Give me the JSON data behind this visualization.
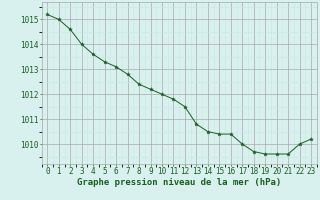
{
  "x": [
    0,
    1,
    2,
    3,
    4,
    5,
    6,
    7,
    8,
    9,
    10,
    11,
    12,
    13,
    14,
    15,
    16,
    17,
    18,
    19,
    20,
    21,
    22,
    23
  ],
  "y": [
    1015.2,
    1015.0,
    1014.6,
    1014.0,
    1013.6,
    1013.3,
    1013.1,
    1012.8,
    1012.4,
    1012.2,
    1012.0,
    1011.8,
    1011.5,
    1010.8,
    1010.5,
    1010.4,
    1010.4,
    1010.0,
    1009.7,
    1009.6,
    1009.6,
    1009.6,
    1010.0,
    1010.2
  ],
  "bg_color": "#d8f0ee",
  "line_color": "#1a5e20",
  "marker_color": "#1a5e20",
  "grid_major_color": "#aaaaaa",
  "grid_minor_color": "#c8e8e4",
  "xlabel": "Graphe pression niveau de la mer (hPa)",
  "xlabel_color": "#1a5e20",
  "tick_color": "#1a5e20",
  "ylabel_ticks": [
    1010,
    1011,
    1012,
    1013,
    1014,
    1015
  ],
  "ylim": [
    1009.2,
    1015.7
  ],
  "xlim": [
    -0.5,
    23.5
  ],
  "tick_fontsize": 5.5,
  "xlabel_fontsize": 6.5
}
